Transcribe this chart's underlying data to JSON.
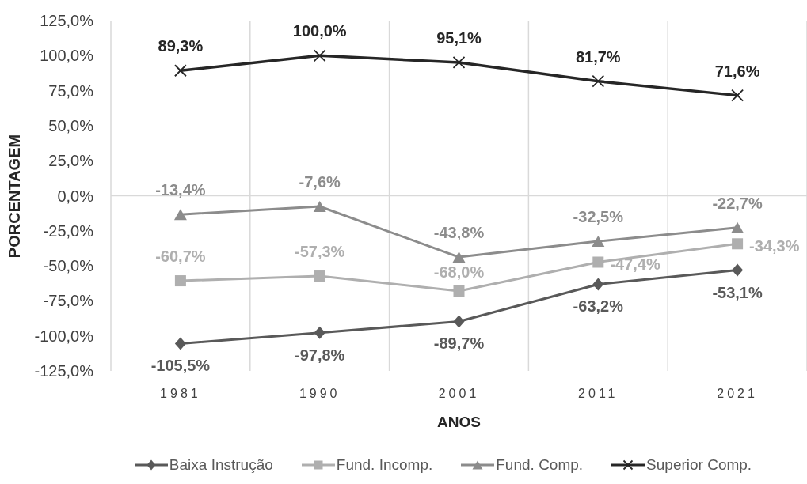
{
  "chart_data": {
    "type": "line",
    "xlabel": "ANOS",
    "ylabel": "PORCENTAGEM",
    "categories": [
      "1981",
      "1990",
      "2001",
      "2011",
      "2021"
    ],
    "ylim": [
      -125,
      125
    ],
    "yticks": [
      {
        "value": -125,
        "label": "-125,0%"
      },
      {
        "value": -100,
        "label": "-100,0%"
      },
      {
        "value": -75,
        "label": "-75,0%"
      },
      {
        "value": -50,
        "label": "-50,0%"
      },
      {
        "value": -25,
        "label": "-25,0%"
      },
      {
        "value": 0,
        "label": "0,0%"
      },
      {
        "value": 25,
        "label": "25,0%"
      },
      {
        "value": 50,
        "label": "50,0%"
      },
      {
        "value": 75,
        "label": "75,0%"
      },
      {
        "value": 100,
        "label": "100,0%"
      },
      {
        "value": 125,
        "label": "125,0%"
      }
    ],
    "grid": "x",
    "legend": "bottom",
    "line_style": "solid",
    "ref_lines": [
      {
        "axis": "y",
        "value": 0,
        "color": "#d9d9d9"
      }
    ],
    "series": [
      {
        "name": "Baixa Instrução",
        "color": "#595959",
        "marker": "diamond",
        "values": [
          -105.5,
          -97.8,
          -89.7,
          -63.2,
          -53.1
        ],
        "value_labels": [
          "-105,5%",
          "-97,8%",
          "-89,7%",
          "-63,2%",
          "-53,1%"
        ]
      },
      {
        "name": "Fund. Incomp.",
        "color": "#afafaf",
        "marker": "square",
        "values": [
          -60.7,
          -57.3,
          -68.0,
          -47.4,
          -34.3
        ],
        "value_labels": [
          "-60,7%",
          "-57,3%",
          "-68,0%",
          "-47,4%",
          "-34,3%"
        ]
      },
      {
        "name": "Fund. Comp.",
        "color": "#8c8c8c",
        "marker": "triangle",
        "values": [
          -13.4,
          -7.6,
          -43.8,
          -32.5,
          -22.7
        ],
        "value_labels": [
          "-13,4%",
          "-7,6%",
          "-43,8%",
          "-32,5%",
          "-22,7%"
        ]
      },
      {
        "name": "Superior Comp.",
        "color": "#262626",
        "marker": "cross",
        "values": [
          89.3,
          100.0,
          95.1,
          81.7,
          71.6
        ],
        "value_labels": [
          "89,3%",
          "100,0%",
          "95,1%",
          "81,7%",
          "71,6%"
        ]
      }
    ]
  }
}
